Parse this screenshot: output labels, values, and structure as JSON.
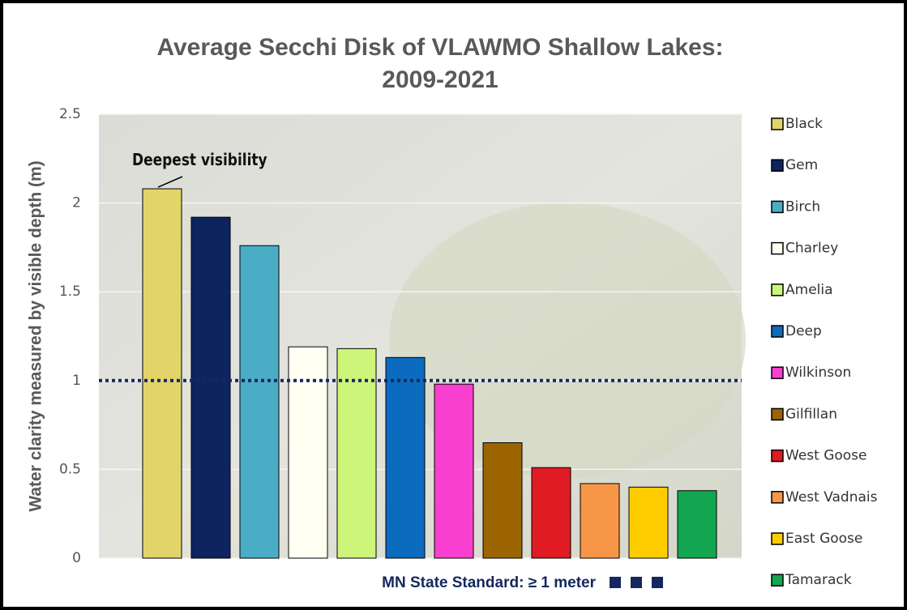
{
  "chart_data": {
    "type": "bar",
    "title": [
      "Average Secchi Disk of VLAWMO Shallow Lakes:",
      "2009-2021"
    ],
    "y_label": "Water clarity measured by visible depth (m)",
    "categories": [
      "Black",
      "Gem",
      "Birch",
      "Charley",
      "Amelia",
      "Deep",
      "Wilkinson",
      "Gilfillan",
      "West Goose",
      "West Vadnais",
      "East Goose",
      "Tamarack"
    ],
    "values": [
      2.08,
      1.92,
      1.76,
      1.19,
      1.18,
      1.13,
      0.98,
      0.65,
      0.51,
      0.42,
      0.4,
      0.38
    ],
    "colors": [
      "#e3d46a",
      "#0d2461",
      "#4bacc6",
      "#fffff2",
      "#ccf57a",
      "#0b6bbf",
      "#f93fd0",
      "#9c6500",
      "#e01b24",
      "#f79646",
      "#ffcc00",
      "#12a650"
    ],
    "ylim": [
      0,
      2.5
    ],
    "yticks": [
      0,
      0.5,
      1,
      1.5,
      2,
      2.5
    ],
    "grid": true,
    "reference_line": {
      "value": 1,
      "label": "MN State Standard: ≥ 1 meter",
      "color": "#14285e"
    },
    "annotation": {
      "text": "Deepest visibility",
      "index": 0
    },
    "legend": "right"
  }
}
